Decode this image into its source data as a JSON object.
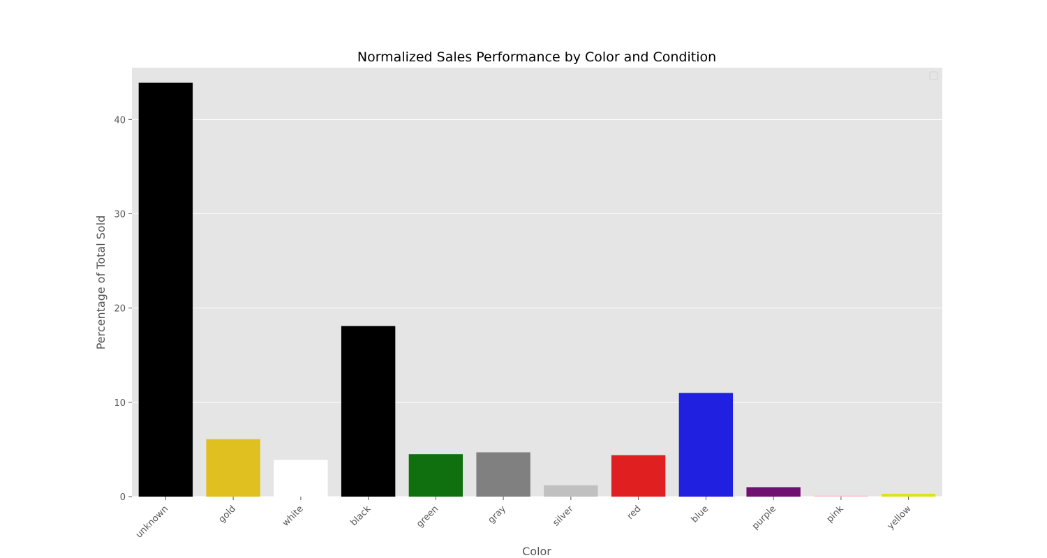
{
  "chart_data": {
    "type": "bar",
    "title": "Normalized Sales Performance by Color and Condition",
    "xlabel": "Color",
    "ylabel": "Percentage of Total Sold",
    "categories": [
      "unknown",
      "gold",
      "white",
      "black",
      "green",
      "gray",
      "silver",
      "red",
      "blue",
      "purple",
      "pink",
      "yellow"
    ],
    "values": [
      43.9,
      6.1,
      3.9,
      18.1,
      4.5,
      4.7,
      1.2,
      4.4,
      11.0,
      1.0,
      0.1,
      0.3
    ],
    "bar_colors": [
      "#000000",
      "#e0c020",
      "#ffffff",
      "#000000",
      "#107010",
      "#808080",
      "#c0c0c0",
      "#e02020",
      "#2020e0",
      "#701070",
      "#ffc0cb",
      "#e0e020"
    ],
    "ylim": [
      0,
      45.5
    ],
    "yticks": [
      0,
      10,
      20,
      30,
      40
    ],
    "grid": true,
    "legend": "top-right",
    "style": {
      "plot_background": "#e5e5e5",
      "grid_color": "#ffffff"
    }
  }
}
